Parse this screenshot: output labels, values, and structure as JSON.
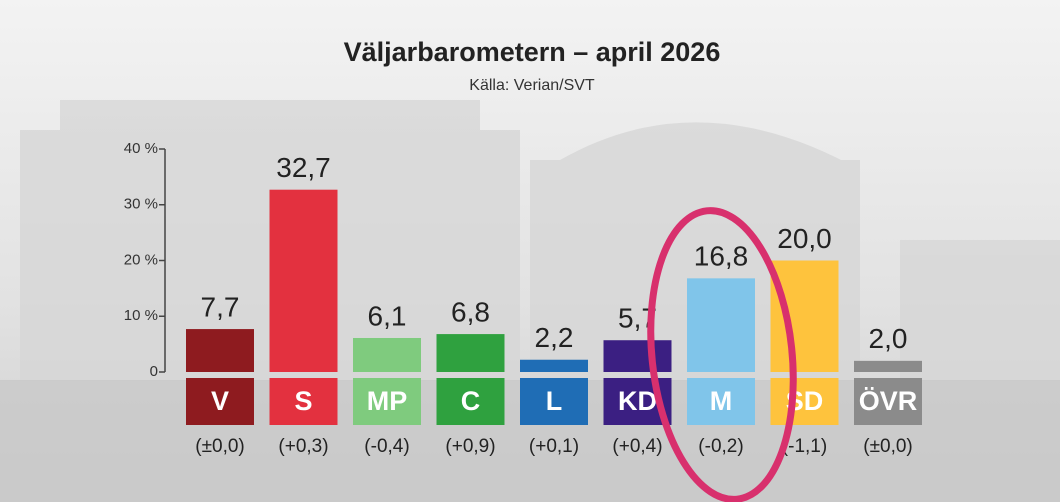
{
  "chart_data": {
    "type": "bar",
    "title": "Väljarbarometern – april 2026",
    "subtitle": "Källa: Verian/SVT",
    "categories": [
      "V",
      "S",
      "MP",
      "C",
      "L",
      "KD",
      "M",
      "SD",
      "ÖVR"
    ],
    "values": [
      7.7,
      32.7,
      6.1,
      6.8,
      2.2,
      5.7,
      16.8,
      20.0,
      2.0
    ],
    "value_labels": [
      "7,7",
      "32,7",
      "6,1",
      "6,8",
      "2,2",
      "5,7",
      "16,8",
      "20,0",
      "2,0"
    ],
    "changes": [
      "(±0,0)",
      "(+0,3)",
      "(-0,4)",
      "(+0,9)",
      "(+0,1)",
      "(+0,4)",
      "(-0,2)",
      "(-1,1)",
      "(±0,0)"
    ],
    "colors": [
      "#8e1b1f",
      "#e3313f",
      "#7fcb7e",
      "#2fa13f",
      "#1f6db5",
      "#3b1f82",
      "#80c5ea",
      "#fec33d",
      "#8b8b8b"
    ],
    "ylim": [
      0,
      40
    ],
    "yticks": [
      0,
      {
        "value": 10,
        "label": "10 %"
      },
      {
        "value": 20,
        "label": "20 %"
      },
      {
        "value": 30,
        "label": "30 %"
      },
      {
        "value": 40,
        "label": "40 %"
      }
    ],
    "grid": false
  }
}
